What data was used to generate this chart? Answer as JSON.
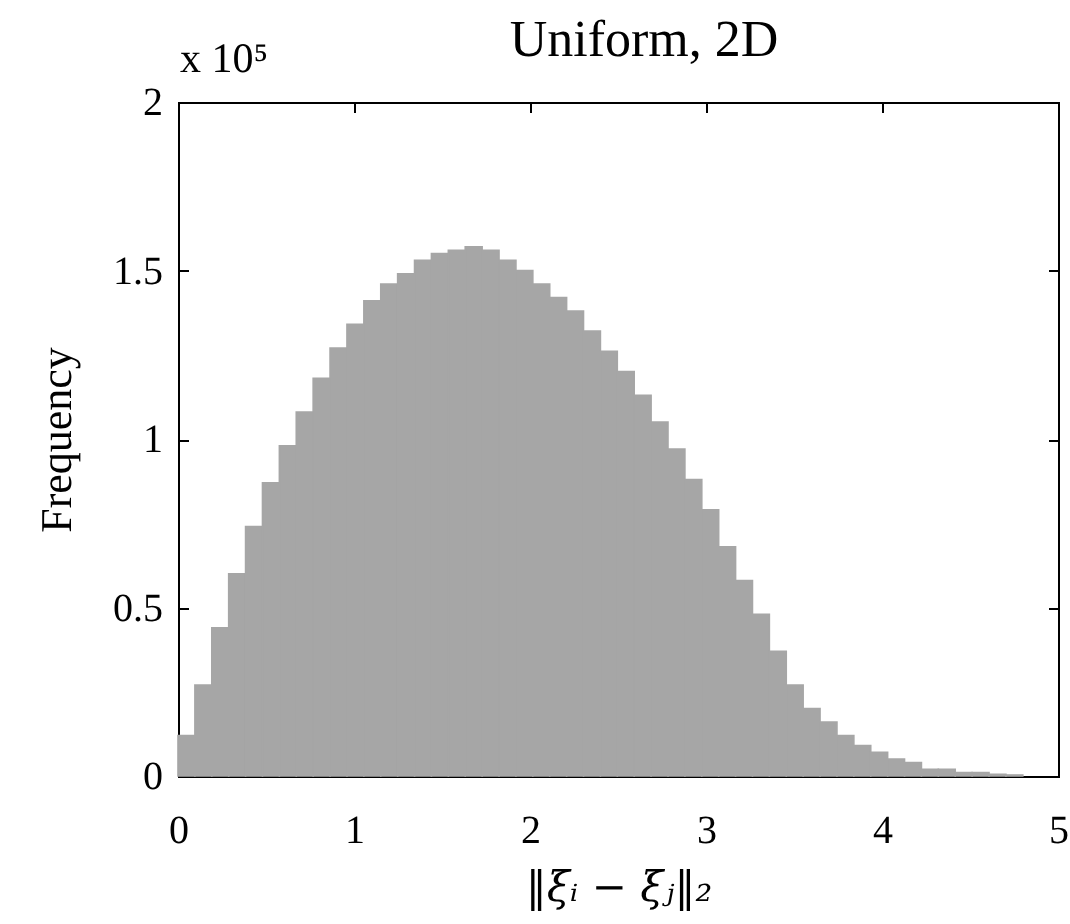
{
  "chart_data": {
    "type": "histogram",
    "title": "Uniform, 2D",
    "xlabel": "‖ξᵢ − ξⱼ‖₂",
    "ylabel": "Frequency",
    "annotations": [
      "x 10⁵"
    ],
    "color": "#a6a6a6",
    "bins": [
      0,
      0.096,
      0.192,
      0.288,
      0.384,
      0.48,
      0.576,
      0.672,
      0.768,
      0.864,
      0.96,
      1.056,
      1.152,
      1.248,
      1.344,
      1.44,
      1.536,
      1.632,
      1.728,
      1.824,
      1.92,
      2.016,
      2.112,
      2.208,
      2.304,
      2.4,
      2.496,
      2.592,
      2.688,
      2.784,
      2.88,
      2.976,
      3.072,
      3.168,
      3.264,
      3.36,
      3.456,
      3.552,
      3.648,
      3.744,
      3.84,
      3.936,
      4.032,
      4.128,
      4.224,
      4.32,
      4.416,
      4.512,
      4.608,
      4.704,
      4.8
    ],
    "values": [
      0.12,
      0.27,
      0.44,
      0.6,
      0.74,
      0.87,
      0.98,
      1.08,
      1.18,
      1.27,
      1.34,
      1.41,
      1.46,
      1.49,
      1.53,
      1.55,
      1.56,
      1.57,
      1.56,
      1.53,
      1.5,
      1.46,
      1.42,
      1.38,
      1.32,
      1.26,
      1.2,
      1.13,
      1.05,
      0.97,
      0.88,
      0.79,
      0.68,
      0.58,
      0.48,
      0.37,
      0.27,
      0.2,
      0.16,
      0.12,
      0.09,
      0.07,
      0.05,
      0.04,
      0.02,
      0.02,
      0.01,
      0.01,
      0.005,
      0.003
    ],
    "xlim": [
      0,
      5
    ],
    "ylim": [
      0,
      2
    ],
    "xticks": [
      0,
      1,
      2,
      3,
      4,
      5
    ],
    "yticks": [
      0,
      0.5,
      1,
      1.5,
      2
    ]
  }
}
